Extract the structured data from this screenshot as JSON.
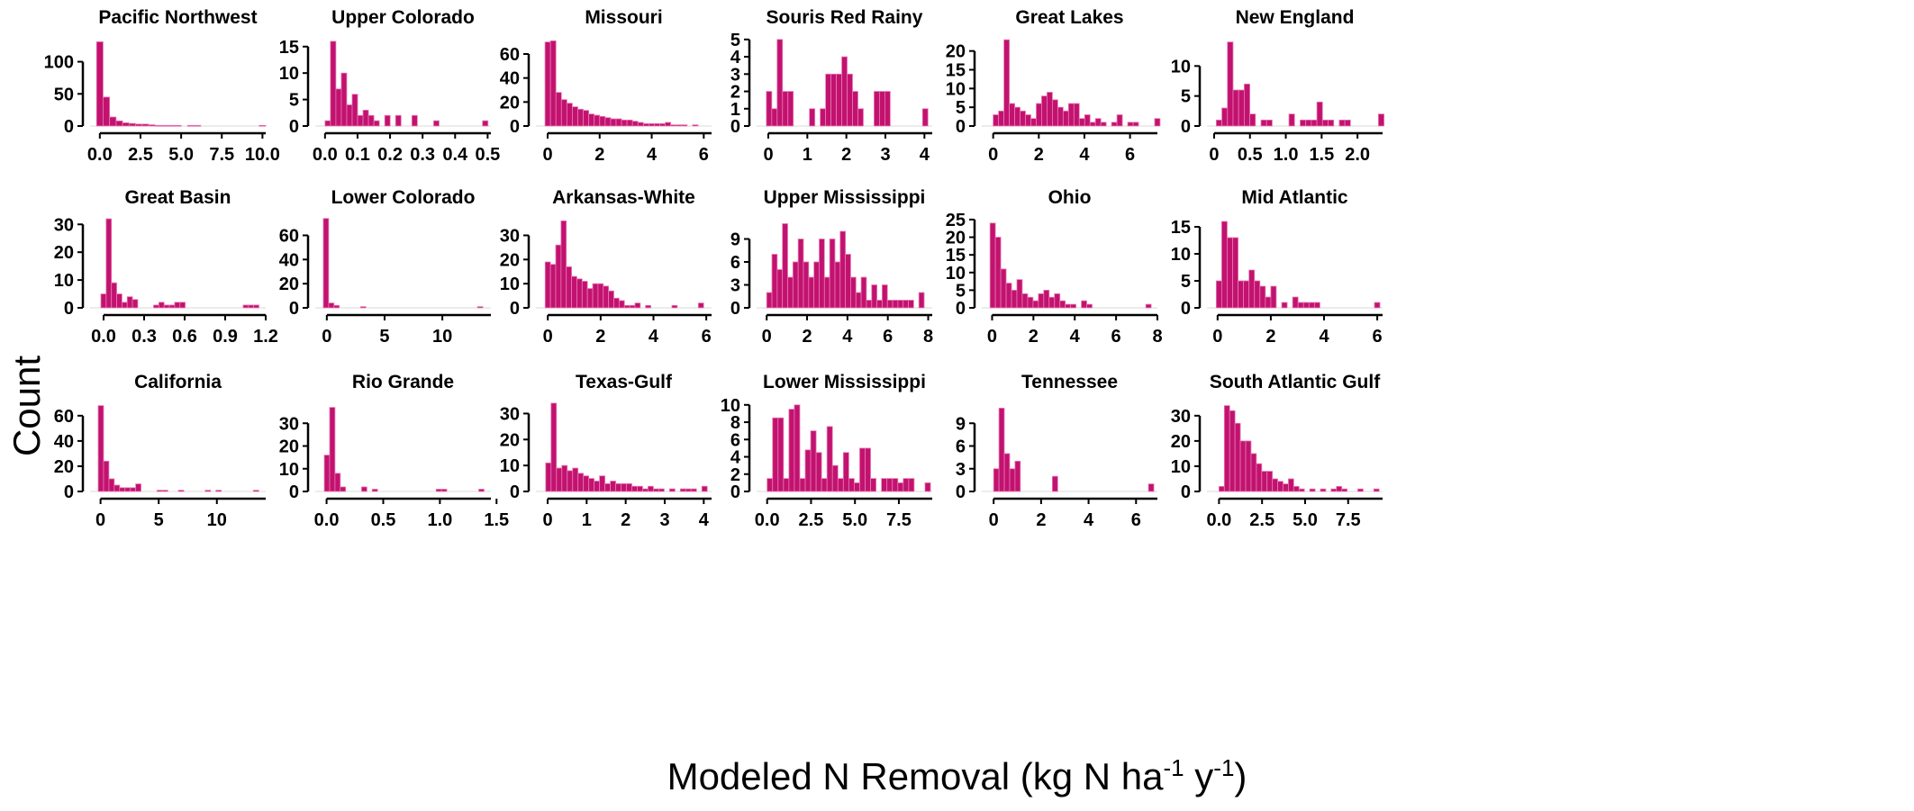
{
  "figure": {
    "ylabel": "Count",
    "xlabel": "Modeled N Removal (kg N ha",
    "xlabel_exp1": "-1",
    "xlabel_mid": " y",
    "xlabel_exp2": "-1",
    "xlabel_end": ")",
    "bar_color": "#C2126F",
    "bar_edge": "#E87AB4"
  },
  "chart_data": [
    {
      "type": "bar",
      "title": "Pacific Northwest",
      "xlim": [
        -0.6,
        10.2
      ],
      "ylim": [
        0,
        140
      ],
      "xticks": [
        0,
        2.5,
        5,
        7.5,
        10
      ],
      "xtick_labels": [
        "0.0",
        "2.5",
        "5.0",
        "7.5",
        "10.0"
      ],
      "yticks": [
        0,
        50,
        100
      ],
      "bin_start": -0.2,
      "bin_width": 0.4,
      "values": [
        131,
        45,
        14,
        8,
        5,
        4,
        3,
        3,
        2,
        1,
        1,
        1,
        1,
        0,
        1,
        1,
        0,
        0,
        0,
        0,
        0,
        0,
        0,
        0,
        0,
        1
      ]
    },
    {
      "type": "bar",
      "title": "Upper Colorado",
      "xlim": [
        -0.03,
        0.51
      ],
      "ylim": [
        0,
        17
      ],
      "xticks": [
        0,
        0.1,
        0.2,
        0.3,
        0.4,
        0.5
      ],
      "xtick_labels": [
        "0.0",
        "0.1",
        "0.2",
        "0.3",
        "0.4",
        "0.5"
      ],
      "yticks": [
        0,
        5,
        10,
        15
      ],
      "bin_start": 0.0,
      "bin_width": 0.0167,
      "values": [
        1,
        16,
        7,
        10,
        4,
        6,
        2,
        3,
        2,
        1,
        0,
        2,
        0,
        2,
        0,
        0,
        2,
        0,
        0,
        0,
        1,
        0,
        0,
        0,
        0,
        0,
        0,
        0,
        0,
        1
      ]
    },
    {
      "type": "bar",
      "title": "Missouri",
      "xlim": [
        -0.45,
        6.3
      ],
      "ylim": [
        0,
        75
      ],
      "xticks": [
        0,
        2,
        4,
        6
      ],
      "xtick_labels": [
        "0",
        "2",
        "4",
        "6"
      ],
      "yticks": [
        0,
        20,
        40,
        60
      ],
      "bin_start": -0.1,
      "bin_width": 0.21,
      "values": [
        70,
        71,
        28,
        22,
        19,
        16,
        14,
        13,
        10,
        9,
        8,
        7,
        6,
        6,
        5,
        5,
        4,
        3,
        2,
        2,
        2,
        2,
        3,
        1,
        1,
        1,
        0,
        1,
        0,
        0,
        0
      ]
    },
    {
      "type": "bar",
      "title": "Souris Red Rainy",
      "xlim": [
        -0.3,
        4.2
      ],
      "ylim": [
        0,
        5.2
      ],
      "xticks": [
        0,
        1,
        2,
        3,
        4
      ],
      "xtick_labels": [
        "0",
        "1",
        "2",
        "3",
        "4"
      ],
      "yticks": [
        0,
        1,
        2,
        3,
        4,
        5
      ],
      "bin_start": -0.05,
      "bin_width": 0.138,
      "values": [
        2,
        1,
        5,
        2,
        2,
        0,
        0,
        0,
        1,
        0,
        1,
        3,
        3,
        3,
        4,
        3,
        2,
        1,
        0,
        0,
        2,
        2,
        2,
        0,
        0,
        0,
        0,
        0,
        0,
        1
      ]
    },
    {
      "type": "bar",
      "title": "Great Lakes",
      "xlim": [
        -0.5,
        7.2
      ],
      "ylim": [
        0,
        24
      ],
      "xticks": [
        0,
        2,
        4,
        6
      ],
      "xtick_labels": [
        "0",
        "2",
        "4",
        "6"
      ],
      "yticks": [
        0,
        5,
        10,
        15,
        20
      ],
      "bin_start": 0.0,
      "bin_width": 0.236,
      "values": [
        3,
        4,
        23,
        6,
        5,
        4,
        3,
        2,
        6,
        8,
        9,
        7,
        5,
        4,
        6,
        6,
        2,
        3,
        1,
        2,
        1,
        0,
        1,
        3,
        0,
        1,
        1,
        0,
        0,
        0,
        2
      ]
    },
    {
      "type": "bar",
      "title": "New England",
      "xlim": [
        -0.1,
        2.35
      ],
      "ylim": [
        0,
        15
      ],
      "xticks": [
        0,
        0.5,
        1,
        1.5,
        2
      ],
      "xtick_labels": [
        "0",
        "0.5",
        "1.0",
        "1.5",
        "2.0"
      ],
      "yticks": [
        0,
        5,
        10
      ],
      "bin_start": 0.03,
      "bin_width": 0.078,
      "values": [
        1,
        3,
        14,
        6,
        6,
        7,
        2,
        0,
        1,
        1,
        0,
        0,
        0,
        2,
        0,
        1,
        1,
        1,
        4,
        1,
        1,
        0,
        1,
        1,
        0,
        0,
        0,
        0,
        0,
        2
      ]
    },
    {
      "type": "bar",
      "title": "Great Basin",
      "xlim": [
        -0.1,
        1.2
      ],
      "ylim": [
        0,
        33
      ],
      "xticks": [
        0,
        0.3,
        0.6,
        0.9,
        1.2
      ],
      "xtick_labels": [
        "0.0",
        "0.3",
        "0.6",
        "0.9",
        "1.2"
      ],
      "yticks": [
        0,
        10,
        20,
        30
      ],
      "bin_start": -0.02,
      "bin_width": 0.039,
      "values": [
        5,
        32,
        9,
        5,
        2,
        4,
        3,
        0,
        0,
        0,
        1,
        2,
        1,
        1,
        2,
        2,
        0,
        0,
        0,
        0,
        0,
        0,
        0,
        0,
        0,
        0,
        0,
        1,
        1,
        1
      ]
    },
    {
      "type": "bar",
      "title": "Lower Colorado",
      "xlim": [
        -1.0,
        14.2
      ],
      "ylim": [
        0,
        76
      ],
      "xticks": [
        0,
        5,
        10
      ],
      "xtick_labels": [
        "0",
        "5",
        "10"
      ],
      "yticks": [
        0,
        20,
        40,
        60
      ],
      "bin_start": -0.3,
      "bin_width": 0.46,
      "values": [
        74,
        4,
        2,
        0,
        0,
        0,
        0,
        1,
        0,
        0,
        0,
        0,
        0,
        0,
        0,
        0,
        0,
        0,
        0,
        0,
        0,
        0,
        0,
        0,
        0,
        0,
        0,
        0,
        0,
        1
      ]
    },
    {
      "type": "bar",
      "title": "Arkansas-White",
      "xlim": [
        -0.45,
        6.2
      ],
      "ylim": [
        0,
        38
      ],
      "xticks": [
        0,
        2,
        4,
        6
      ],
      "xtick_labels": [
        "0",
        "2",
        "4",
        "6"
      ],
      "yticks": [
        0,
        10,
        20,
        30
      ],
      "bin_start": -0.1,
      "bin_width": 0.2,
      "values": [
        19,
        18,
        26,
        36,
        17,
        13,
        12,
        11,
        8,
        10,
        10,
        9,
        7,
        4,
        3,
        1,
        1,
        2,
        0,
        1,
        0,
        0,
        0,
        0,
        1,
        0,
        0,
        0,
        0,
        2
      ]
    },
    {
      "type": "bar",
      "title": "Upper Mississippi",
      "xlim": [
        -0.5,
        8.2
      ],
      "ylim": [
        0,
        12
      ],
      "xticks": [
        0,
        2,
        4,
        6,
        8
      ],
      "xtick_labels": [
        "0",
        "2",
        "4",
        "6",
        "8"
      ],
      "yticks": [
        0,
        3,
        6,
        9
      ],
      "bin_start": 0.0,
      "bin_width": 0.26,
      "values": [
        2,
        7,
        5,
        11,
        4,
        6,
        9,
        6,
        4,
        6,
        9,
        4,
        9,
        6,
        10,
        7,
        4,
        2,
        4,
        1,
        3,
        1,
        3,
        1,
        1,
        1,
        1,
        1,
        0,
        2
      ]
    },
    {
      "type": "bar",
      "title": "Ohio",
      "xlim": [
        -0.5,
        8.0
      ],
      "ylim": [
        0,
        26
      ],
      "xticks": [
        0,
        2,
        4,
        6,
        8
      ],
      "xtick_labels": [
        "0",
        "2",
        "4",
        "6",
        "8"
      ],
      "yticks": [
        0,
        5,
        10,
        15,
        20,
        25
      ],
      "bin_start": -0.1,
      "bin_width": 0.26,
      "values": [
        24,
        20,
        11,
        7,
        5,
        8,
        4,
        3,
        2,
        4,
        5,
        3,
        4,
        2,
        1,
        1,
        0,
        2,
        1,
        0,
        0,
        0,
        0,
        0,
        0,
        0,
        0,
        0,
        0,
        1
      ]
    },
    {
      "type": "bar",
      "title": "Mid Atlantic",
      "xlim": [
        -0.4,
        6.2
      ],
      "ylim": [
        0,
        17
      ],
      "xticks": [
        0,
        2,
        4,
        6
      ],
      "xtick_labels": [
        "0",
        "2",
        "4",
        "6"
      ],
      "yticks": [
        0,
        5,
        10,
        15
      ],
      "bin_start": -0.05,
      "bin_width": 0.205,
      "values": [
        5,
        16,
        13,
        13,
        5,
        5,
        7,
        5,
        4,
        2,
        4,
        0,
        1,
        0,
        2,
        1,
        1,
        1,
        1,
        0,
        0,
        0,
        0,
        0,
        0,
        0,
        0,
        0,
        0,
        1
      ]
    },
    {
      "type": "bar",
      "title": "California",
      "xlim": [
        -0.9,
        14.2
      ],
      "ylim": [
        0,
        72
      ],
      "xticks": [
        0,
        5,
        10
      ],
      "xtick_labels": [
        "0",
        "5",
        "10"
      ],
      "yticks": [
        0,
        20,
        40,
        60
      ],
      "bin_start": -0.2,
      "bin_width": 0.46,
      "values": [
        68,
        24,
        10,
        5,
        3,
        3,
        3,
        6,
        0,
        0,
        0,
        1,
        1,
        0,
        0,
        1,
        0,
        0,
        0,
        0,
        1,
        0,
        1,
        0,
        0,
        0,
        0,
        0,
        0,
        1
      ]
    },
    {
      "type": "bar",
      "title": "Rio Grande",
      "xlim": [
        -0.1,
        1.45
      ],
      "ylim": [
        0,
        40
      ],
      "xticks": [
        0,
        0.5,
        1,
        1.5
      ],
      "xtick_labels": [
        "0.0",
        "0.5",
        "1.0",
        "1.5"
      ],
      "yticks": [
        0,
        10,
        20,
        30
      ],
      "bin_start": -0.02,
      "bin_width": 0.047,
      "values": [
        16,
        37,
        8,
        2,
        0,
        0,
        0,
        2,
        0,
        1,
        0,
        0,
        0,
        0,
        0,
        0,
        0,
        0,
        0,
        0,
        0,
        1,
        1,
        0,
        0,
        0,
        0,
        0,
        0,
        1
      ]
    },
    {
      "type": "bar",
      "title": "Texas-Gulf",
      "xlim": [
        -0.3,
        4.2
      ],
      "ylim": [
        0,
        35
      ],
      "xticks": [
        0,
        1,
        2,
        3,
        4
      ],
      "xtick_labels": [
        "0",
        "1",
        "2",
        "3",
        "4"
      ],
      "yticks": [
        0,
        10,
        20,
        30
      ],
      "bin_start": -0.05,
      "bin_width": 0.138,
      "values": [
        11,
        34,
        9,
        10,
        8,
        9,
        7,
        6,
        5,
        4,
        6,
        3,
        4,
        3,
        3,
        3,
        2,
        2,
        1,
        2,
        1,
        1,
        0,
        1,
        0,
        1,
        1,
        1,
        0,
        2
      ]
    },
    {
      "type": "bar",
      "title": "Lower Mississippi",
      "xlim": [
        -0.6,
        9.4
      ],
      "ylim": [
        0,
        10.5
      ],
      "xticks": [
        0,
        2.5,
        5,
        7.5
      ],
      "xtick_labels": [
        "0.0",
        "2.5",
        "5.0",
        "7.5"
      ],
      "yticks": [
        0,
        2,
        4,
        6,
        8,
        10
      ],
      "bin_start": 0.0,
      "bin_width": 0.31,
      "values": [
        1.5,
        8.5,
        8.5,
        1.5,
        9.5,
        10,
        1.5,
        4.8,
        7,
        4.5,
        1.5,
        7.5,
        3,
        1.5,
        4.5,
        1.5,
        1,
        5,
        5,
        1.5,
        0,
        1.5,
        1.5,
        1.5,
        1,
        1.5,
        1.5,
        0,
        0,
        1
      ]
    },
    {
      "type": "bar",
      "title": "Tennessee",
      "xlim": [
        -0.5,
        6.9
      ],
      "ylim": [
        0,
        12
      ],
      "xticks": [
        0,
        2,
        4,
        6
      ],
      "xtick_labels": [
        "0",
        "2",
        "4",
        "6"
      ],
      "yticks": [
        0,
        3,
        6,
        9
      ],
      "bin_start": 0.0,
      "bin_width": 0.225,
      "values": [
        3,
        11,
        5,
        3,
        4,
        0,
        0,
        0,
        0,
        0,
        0,
        2,
        0,
        0,
        0,
        0,
        0,
        0,
        0,
        0,
        0,
        0,
        0,
        0,
        0,
        0,
        0,
        0,
        0,
        1
      ]
    },
    {
      "type": "bar",
      "title": "South Atlantic Gulf",
      "xlim": [
        -0.7,
        9.5
      ],
      "ylim": [
        0,
        36
      ],
      "xticks": [
        0,
        2.5,
        5,
        7.5
      ],
      "xtick_labels": [
        "0.0",
        "2.5",
        "5.0",
        "7.5"
      ],
      "yticks": [
        0,
        10,
        20,
        30
      ],
      "bin_start": 0.0,
      "bin_width": 0.31,
      "values": [
        2,
        34,
        32,
        27,
        20,
        20,
        15,
        11,
        8,
        8,
        5,
        4,
        3,
        5,
        2,
        1,
        0,
        1,
        0,
        1,
        0,
        1,
        2,
        1,
        0,
        0,
        1,
        0,
        0,
        1
      ]
    }
  ]
}
